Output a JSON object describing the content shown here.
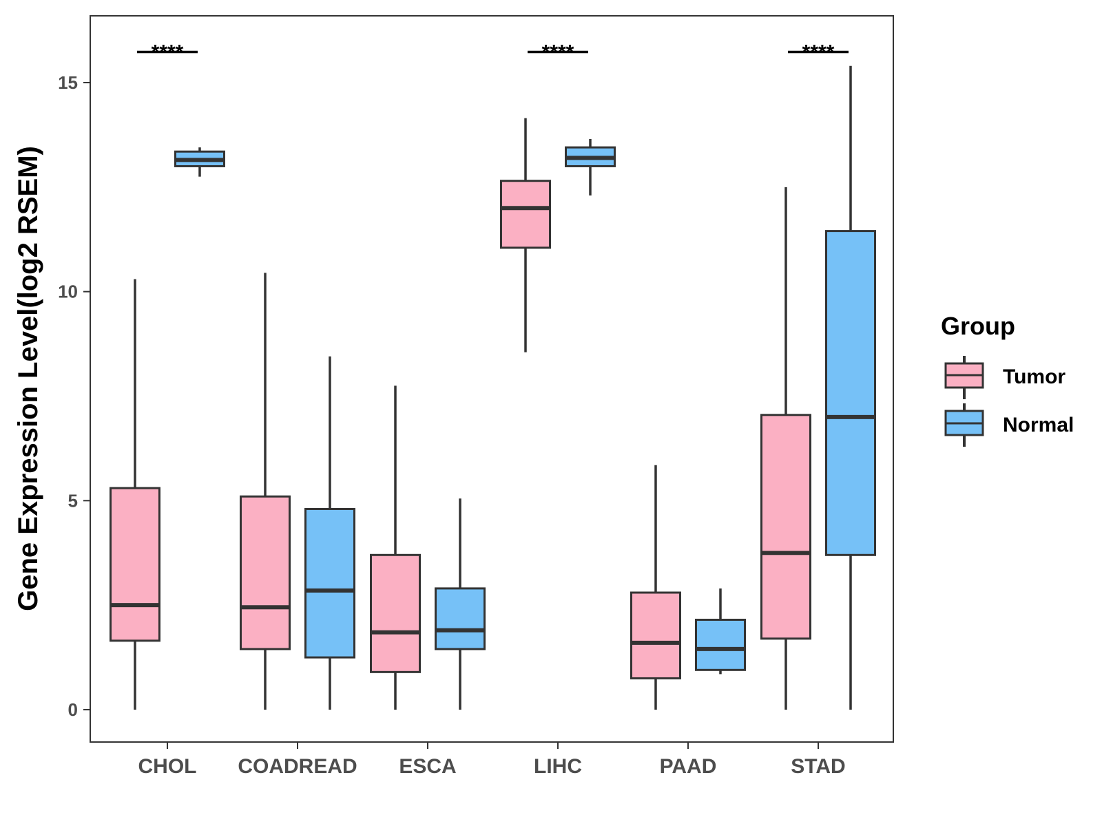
{
  "chart_data": {
    "type": "boxplot",
    "title": "",
    "xlabel": "",
    "ylabel": "Gene Expression Level(log2 RSEM)",
    "ylim": [
      -0.75,
      16.6
    ],
    "yticks": [
      0,
      5,
      10,
      15
    ],
    "ytick_labels": [
      "0",
      "5",
      "10",
      "15"
    ],
    "grid": false,
    "legend_position": "right",
    "categories": [
      "CHOL",
      "COADREAD",
      "ESCA",
      "LIHC",
      "PAAD",
      "STAD"
    ],
    "legend": {
      "title": "Group",
      "entries": [
        {
          "name": "Tumor",
          "color": "#FBB0C3"
        },
        {
          "name": "Normal",
          "color": "#76C1F7"
        }
      ]
    },
    "series": [
      {
        "name": "Tumor",
        "color": "#FBB0C3",
        "boxes": [
          {
            "category": "CHOL",
            "whisker_low": 0,
            "q1": 1.65,
            "median": 2.5,
            "q3": 5.3,
            "whisker_high": 10.3
          },
          {
            "category": "COADREAD",
            "whisker_low": 0,
            "q1": 1.45,
            "median": 2.45,
            "q3": 5.1,
            "whisker_high": 10.45
          },
          {
            "category": "ESCA",
            "whisker_low": 0,
            "q1": 0.9,
            "median": 1.85,
            "q3": 3.7,
            "whisker_high": 7.75
          },
          {
            "category": "LIHC",
            "whisker_low": 8.55,
            "q1": 11.05,
            "median": 12.0,
            "q3": 12.65,
            "whisker_high": 14.15
          },
          {
            "category": "PAAD",
            "whisker_low": 0,
            "q1": 0.75,
            "median": 1.6,
            "q3": 2.8,
            "whisker_high": 5.85
          },
          {
            "category": "STAD",
            "whisker_low": 0,
            "q1": 1.7,
            "median": 3.75,
            "q3": 7.05,
            "whisker_high": 12.5
          }
        ]
      },
      {
        "name": "Normal",
        "color": "#76C1F7",
        "boxes": [
          {
            "category": "CHOL",
            "whisker_low": 12.75,
            "q1": 13.0,
            "median": 13.15,
            "q3": 13.35,
            "whisker_high": 13.45
          },
          {
            "category": "COADREAD",
            "whisker_low": 0,
            "q1": 1.25,
            "median": 2.85,
            "q3": 4.8,
            "whisker_high": 8.45
          },
          {
            "category": "ESCA",
            "whisker_low": 0,
            "q1": 1.45,
            "median": 1.9,
            "q3": 2.9,
            "whisker_high": 5.05
          },
          {
            "category": "LIHC",
            "whisker_low": 12.3,
            "q1": 13.0,
            "median": 13.2,
            "q3": 13.45,
            "whisker_high": 13.65
          },
          {
            "category": "PAAD",
            "whisker_low": 0.85,
            "q1": 0.95,
            "median": 1.45,
            "q3": 2.15,
            "whisker_high": 2.9
          },
          {
            "category": "STAD",
            "whisker_low": 0,
            "q1": 3.7,
            "median": 7.0,
            "q3": 11.45,
            "whisker_high": 15.4
          }
        ]
      }
    ],
    "annotations": [
      {
        "category": "CHOL",
        "text": "****",
        "y": 15.7
      },
      {
        "category": "LIHC",
        "text": "****",
        "y": 15.7
      },
      {
        "category": "STAD",
        "text": "****",
        "y": 15.7
      }
    ]
  }
}
